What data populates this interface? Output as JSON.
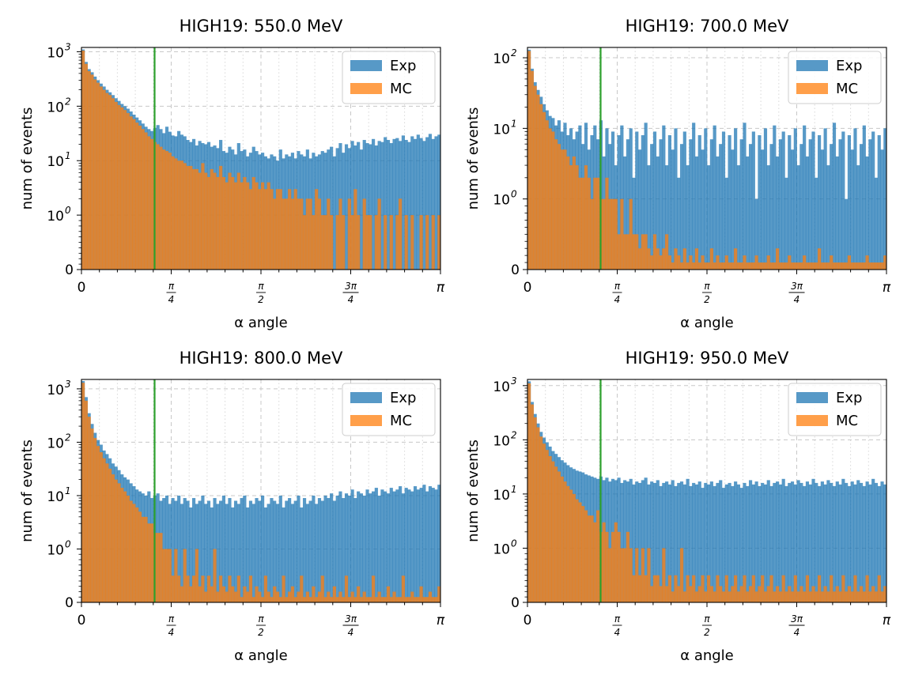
{
  "figure": {
    "colors": {
      "exp": "#1f77b4",
      "mc": "#ff7f0e",
      "cut_line": "#2ca02c",
      "grid": "#c8c8c8"
    },
    "legend": {
      "exp_label": "Exp",
      "mc_label": "MC",
      "placement": "top-right"
    },
    "x_tick_labels": {
      "zero": "0",
      "quarter_num": "π",
      "quarter_den": "4",
      "half_num": "π",
      "half_den": "2",
      "three_quarter_num": "3π",
      "three_quarter_den": "4",
      "pi": "π"
    }
  },
  "chart_data": [
    {
      "type": "bar",
      "title": "HIGH19: 550.0 MeV",
      "xlabel": "α angle",
      "ylabel": "num of events",
      "x_range": [
        0,
        3.14159
      ],
      "y_scale": "symlog",
      "y_ticks": [
        {
          "value": 0,
          "label": "0"
        },
        {
          "value": 1,
          "label": "10",
          "exp": "0"
        },
        {
          "value": 10,
          "label": "10",
          "exp": "1"
        },
        {
          "value": 100,
          "label": "10",
          "exp": "2"
        },
        {
          "value": 1000,
          "label": "10",
          "exp": "3"
        }
      ],
      "y_max": 1200,
      "cut_x": 0.64,
      "grid": true,
      "bins": 120,
      "exp": [
        1100,
        650,
        480,
        420,
        350,
        300,
        260,
        230,
        200,
        180,
        160,
        140,
        125,
        110,
        100,
        90,
        80,
        70,
        62,
        55,
        48,
        42,
        38,
        35,
        40,
        45,
        38,
        32,
        42,
        34,
        29,
        28,
        35,
        30,
        28,
        24,
        22,
        25,
        19,
        23,
        21,
        20,
        22,
        18,
        19,
        17,
        24,
        15,
        14,
        18,
        16,
        13,
        21,
        15,
        16,
        12,
        14,
        18,
        15,
        13,
        14,
        12,
        11,
        13,
        12,
        10,
        16,
        11,
        13,
        12,
        14,
        11,
        15,
        13,
        12,
        16,
        11,
        14,
        12,
        13,
        15,
        14,
        16,
        18,
        12,
        17,
        21,
        14,
        20,
        17,
        23,
        19,
        22,
        16,
        24,
        21,
        20,
        25,
        19,
        23,
        22,
        27,
        24,
        21,
        25,
        26,
        23,
        29,
        24,
        22,
        28,
        25,
        30,
        26,
        23,
        27,
        31,
        25,
        28,
        30
      ],
      "mc": [
        1050,
        600,
        440,
        380,
        310,
        270,
        230,
        200,
        175,
        160,
        140,
        120,
        105,
        95,
        85,
        75,
        65,
        58,
        50,
        44,
        38,
        33,
        28,
        25,
        22,
        20,
        18,
        16,
        15,
        14,
        12,
        11,
        10,
        10,
        9,
        8,
        8,
        7,
        7,
        6,
        9,
        6,
        5,
        7,
        6,
        5,
        8,
        5,
        4,
        6,
        5,
        4,
        6,
        4,
        5,
        4,
        3,
        5,
        4,
        3,
        4,
        3,
        4,
        3,
        2,
        3,
        3,
        2,
        2,
        3,
        2,
        3,
        2,
        2,
        1,
        2,
        2,
        1,
        3,
        2,
        1,
        1,
        2,
        1,
        0,
        1,
        2,
        1,
        0,
        2,
        1,
        3,
        1,
        0,
        2,
        1,
        1,
        0,
        1,
        2,
        0,
        1,
        0,
        1,
        0,
        1,
        2,
        0,
        1,
        0,
        1,
        0,
        0,
        1,
        0,
        1,
        0,
        1,
        0,
        1
      ]
    },
    {
      "type": "bar",
      "title": "HIGH19: 700.0 MeV",
      "xlabel": "α angle",
      "ylabel": "num of events",
      "x_range": [
        0,
        3.14159
      ],
      "y_scale": "symlog",
      "y_ticks": [
        {
          "value": 0,
          "label": "0"
        },
        {
          "value": 1,
          "label": "10",
          "exp": "0"
        },
        {
          "value": 10,
          "label": "10",
          "exp": "1"
        },
        {
          "value": 100,
          "label": "10",
          "exp": "2"
        }
      ],
      "y_max": 140,
      "cut_x": 0.64,
      "grid": true,
      "bins": 120,
      "exp": [
        130,
        70,
        45,
        35,
        28,
        22,
        18,
        15,
        14,
        11,
        13,
        9,
        12,
        8,
        10,
        7,
        9,
        11,
        6,
        12,
        5,
        8,
        11,
        7,
        13,
        4,
        10,
        6,
        9,
        3,
        8,
        11,
        4,
        7,
        10,
        2,
        9,
        5,
        8,
        12,
        3,
        6,
        9,
        4,
        7,
        11,
        3,
        8,
        5,
        10,
        2,
        6,
        9,
        3,
        7,
        12,
        4,
        8,
        5,
        10,
        3,
        7,
        11,
        4,
        6,
        9,
        2,
        8,
        5,
        10,
        3,
        7,
        12,
        4,
        6,
        9,
        1,
        8,
        5,
        10,
        3,
        6,
        11,
        4,
        7,
        9,
        2,
        8,
        5,
        10,
        3,
        6,
        11,
        4,
        7,
        9,
        2,
        8,
        5,
        10,
        3,
        6,
        12,
        4,
        7,
        9,
        1,
        8,
        5,
        10,
        3,
        6,
        11,
        4,
        7,
        9,
        2,
        8,
        5,
        10
      ],
      "mc": [
        125,
        65,
        40,
        30,
        22,
        17,
        13,
        10,
        9,
        7,
        6,
        5,
        5,
        4,
        3,
        4,
        3,
        2,
        2,
        3,
        2,
        1,
        2,
        2,
        1,
        1,
        2,
        1,
        1,
        1,
        0.5,
        1,
        0.5,
        0.5,
        1,
        0.5,
        0.5,
        0.3,
        0.5,
        0.5,
        0.3,
        0.2,
        0.5,
        0.3,
        0.2,
        0.3,
        0.5,
        0.2,
        0.1,
        0.3,
        0.2,
        0.1,
        0.3,
        0.1,
        0.2,
        0.1,
        0.3,
        0.1,
        0.2,
        0.1,
        0.1,
        0.3,
        0.1,
        0.2,
        0.1,
        0.1,
        0.2,
        0.1,
        0.1,
        0.3,
        0.1,
        0.1,
        0.2,
        0.1,
        0.1,
        0.1,
        0.2,
        0.1,
        0.1,
        0.1,
        0.2,
        0.1,
        0.1,
        0.3,
        0.1,
        0.1,
        0.1,
        0.2,
        0.1,
        0.1,
        0.1,
        0.1,
        0.2,
        0.1,
        0.1,
        0.1,
        0.1,
        0.3,
        0.1,
        0.1,
        0.1,
        0.2,
        0.1,
        0.1,
        0.1,
        0.1,
        0.1,
        0.2,
        0.1,
        0.1,
        0.1,
        0.1,
        0.1,
        0.2,
        0.1,
        0.1,
        0.1,
        0.1,
        0.1,
        0.2
      ]
    },
    {
      "type": "bar",
      "title": "HIGH19: 800.0 MeV",
      "xlabel": "α angle",
      "ylabel": "num of events",
      "x_range": [
        0,
        3.14159
      ],
      "y_scale": "symlog",
      "y_ticks": [
        {
          "value": 0,
          "label": "0"
        },
        {
          "value": 1,
          "label": "10",
          "exp": "0"
        },
        {
          "value": 10,
          "label": "10",
          "exp": "1"
        },
        {
          "value": 100,
          "label": "10",
          "exp": "2"
        },
        {
          "value": 1000,
          "label": "10",
          "exp": "3"
        }
      ],
      "y_max": 1500,
      "cut_x": 0.64,
      "grid": true,
      "bins": 120,
      "exp": [
        1400,
        700,
        350,
        220,
        150,
        110,
        90,
        70,
        60,
        50,
        40,
        35,
        30,
        25,
        22,
        20,
        17,
        15,
        13,
        12,
        11,
        10,
        12,
        9,
        10,
        11,
        8,
        9,
        10,
        7,
        9,
        8,
        10,
        7,
        9,
        8,
        6,
        9,
        7,
        8,
        10,
        7,
        8,
        6,
        9,
        7,
        8,
        10,
        7,
        9,
        6,
        8,
        7,
        9,
        10,
        6,
        8,
        7,
        9,
        8,
        10,
        6,
        7,
        9,
        8,
        7,
        10,
        6,
        8,
        9,
        7,
        8,
        10,
        6,
        9,
        7,
        8,
        10,
        7,
        9,
        8,
        10,
        9,
        11,
        8,
        10,
        12,
        9,
        11,
        10,
        13,
        9,
        12,
        11,
        10,
        13,
        11,
        12,
        14,
        10,
        13,
        12,
        11,
        14,
        12,
        13,
        15,
        11,
        14,
        13,
        12,
        15,
        13,
        14,
        16,
        12,
        15,
        14,
        13,
        16
      ],
      "mc": [
        1300,
        600,
        300,
        180,
        120,
        85,
        65,
        50,
        40,
        32,
        25,
        20,
        17,
        14,
        12,
        10,
        8,
        7,
        6,
        5,
        4,
        4,
        3,
        3,
        2,
        2,
        2,
        1,
        1,
        1,
        0.5,
        1,
        0.5,
        0.3,
        1,
        0.5,
        0.3,
        0.5,
        1,
        0.3,
        0.5,
        0.2,
        0.5,
        0.3,
        1,
        0.2,
        0.5,
        0.3,
        0.2,
        0.5,
        0.3,
        0.2,
        0.5,
        0.1,
        0.3,
        0.2,
        0.5,
        0.1,
        0.3,
        0.2,
        0.1,
        0.5,
        0.2,
        0.1,
        0.3,
        0.2,
        0.1,
        0.5,
        0.1,
        0.2,
        0.3,
        0.1,
        0.2,
        0.5,
        0.1,
        0.2,
        0.1,
        0.3,
        0.1,
        0.2,
        0.5,
        0.1,
        0.2,
        0.1,
        0.3,
        0.1,
        0.2,
        0.1,
        0.5,
        0.1,
        0.2,
        0.1,
        0.3,
        0.1,
        0.2,
        0.1,
        0.1,
        0.5,
        0.1,
        0.2,
        0.1,
        0.1,
        0.3,
        0.1,
        0.2,
        0.1,
        0.1,
        0.5,
        0.1,
        0.1,
        0.2,
        0.1,
        0.1,
        0.3,
        0.1,
        0.1,
        0.2,
        0.1,
        0.1,
        0.3
      ]
    },
    {
      "type": "bar",
      "title": "HIGH19: 950.0 MeV",
      "xlabel": "α angle",
      "ylabel": "num of events",
      "x_range": [
        0,
        3.14159
      ],
      "y_scale": "symlog",
      "y_ticks": [
        {
          "value": 0,
          "label": "0"
        },
        {
          "value": 1,
          "label": "10",
          "exp": "0"
        },
        {
          "value": 10,
          "label": "10",
          "exp": "1"
        },
        {
          "value": 100,
          "label": "10",
          "exp": "2"
        },
        {
          "value": 1000,
          "label": "10",
          "exp": "3"
        }
      ],
      "y_max": 1300,
      "cut_x": 0.64,
      "grid": true,
      "bins": 120,
      "exp": [
        1200,
        500,
        300,
        200,
        140,
        110,
        90,
        75,
        62,
        55,
        48,
        42,
        38,
        34,
        31,
        29,
        27,
        26,
        25,
        23,
        22,
        21,
        20,
        19,
        21,
        18,
        20,
        17,
        19,
        18,
        20,
        16,
        18,
        17,
        19,
        15,
        17,
        16,
        18,
        20,
        15,
        17,
        16,
        18,
        14,
        16,
        17,
        15,
        18,
        14,
        16,
        17,
        15,
        19,
        14,
        16,
        15,
        17,
        13,
        16,
        15,
        17,
        14,
        16,
        18,
        13,
        15,
        16,
        14,
        17,
        15,
        13,
        16,
        14,
        18,
        15,
        17,
        14,
        16,
        15,
        18,
        14,
        16,
        17,
        15,
        19,
        14,
        16,
        17,
        15,
        18,
        16,
        14,
        17,
        15,
        19,
        16,
        14,
        17,
        15,
        18,
        16,
        14,
        17,
        15,
        19,
        16,
        14,
        17,
        15,
        18,
        16,
        14,
        17,
        15,
        19,
        16,
        14,
        17,
        15
      ],
      "mc": [
        1100,
        450,
        260,
        170,
        115,
        85,
        65,
        50,
        40,
        32,
        26,
        21,
        17,
        14,
        12,
        10,
        8,
        7,
        6,
        5,
        4,
        4,
        3,
        5,
        2,
        3,
        2,
        1,
        2,
        3,
        2,
        1,
        1,
        2,
        1,
        0.5,
        1,
        0.5,
        1,
        0.5,
        1,
        0.3,
        0.5,
        0.5,
        0.3,
        1,
        0.3,
        0.5,
        0.2,
        0.5,
        0.3,
        1,
        0.2,
        0.5,
        0.3,
        0.5,
        0.2,
        0.3,
        0.5,
        0.2,
        0.5,
        0.3,
        0.2,
        0.5,
        0.3,
        0.2,
        0.5,
        0.2,
        0.3,
        0.5,
        0.2,
        0.3,
        0.5,
        0.2,
        0.3,
        0.5,
        0.2,
        0.3,
        0.5,
        0.2,
        0.3,
        0.5,
        0.2,
        0.3,
        0.2,
        0.5,
        0.2,
        0.3,
        0.2,
        0.5,
        0.2,
        0.3,
        0.2,
        0.5,
        0.2,
        0.3,
        0.2,
        0.5,
        0.2,
        0.3,
        0.2,
        0.5,
        0.2,
        0.3,
        0.2,
        0.5,
        0.2,
        0.3,
        0.2,
        0.5,
        0.2,
        0.3,
        0.2,
        0.5,
        0.2,
        0.3,
        0.2,
        0.5,
        0.2,
        0.3
      ]
    }
  ]
}
